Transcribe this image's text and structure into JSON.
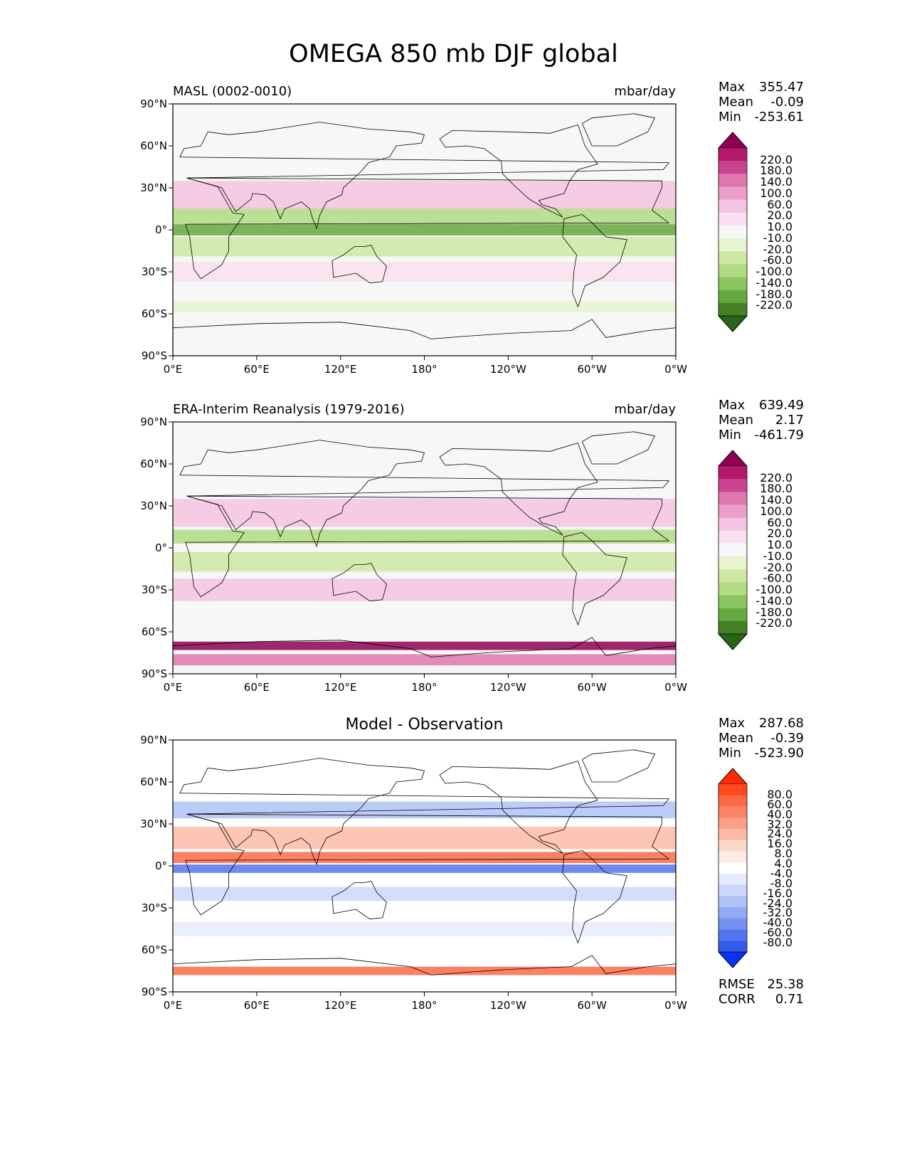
{
  "title": "OMEGA 850 mb DJF global",
  "axes": {
    "lat_ticks": [
      "90°N",
      "60°N",
      "30°N",
      "0°",
      "30°S",
      "60°S",
      "90°S"
    ],
    "lon_ticks": [
      "0°E",
      "60°E",
      "120°E",
      "180°",
      "120°W",
      "60°W",
      "0°W"
    ]
  },
  "panels": [
    {
      "id": "model",
      "title_left": "MASL (0002-0010)",
      "title_center": "",
      "title_right": "mbar/day",
      "stats": [
        {
          "label": "Max",
          "value": "355.47"
        },
        {
          "label": "Mean",
          "value": "-0.09"
        },
        {
          "label": "Min",
          "value": "-253.61"
        }
      ],
      "colorbar": {
        "levels": [
          "220.0",
          "180.0",
          "140.0",
          "100.0",
          "60.0",
          "20.0",
          "10.0",
          "-10.0",
          "-20.0",
          "-60.0",
          "-100.0",
          "-140.0",
          "-180.0",
          "-220.0"
        ],
        "colors": [
          "#8e0152",
          "#b3186c",
          "#c8448f",
          "#de77ae",
          "#ec9dc8",
          "#f4c4e1",
          "#f9e0ef",
          "#f7f7f7",
          "#e6f5d0",
          "#cde8a5",
          "#b2db84",
          "#8cc660",
          "#65a83e",
          "#437f24",
          "#27641a"
        ]
      }
    },
    {
      "id": "obs",
      "title_left": "ERA-Interim Reanalysis (1979-2016)",
      "title_center": "",
      "title_right": "mbar/day",
      "stats": [
        {
          "label": "Max",
          "value": "639.49"
        },
        {
          "label": "Mean",
          "value": "2.17"
        },
        {
          "label": "Min",
          "value": "-461.79"
        }
      ],
      "colorbar": {
        "levels": [
          "220.0",
          "180.0",
          "140.0",
          "100.0",
          "60.0",
          "20.0",
          "10.0",
          "-10.0",
          "-20.0",
          "-60.0",
          "-100.0",
          "-140.0",
          "-180.0",
          "-220.0"
        ],
        "colors": [
          "#8e0152",
          "#b3186c",
          "#c8448f",
          "#de77ae",
          "#ec9dc8",
          "#f4c4e1",
          "#f9e0ef",
          "#f7f7f7",
          "#e6f5d0",
          "#cde8a5",
          "#b2db84",
          "#8cc660",
          "#65a83e",
          "#437f24",
          "#27641a"
        ]
      }
    },
    {
      "id": "diff",
      "title_left": "",
      "title_center": "Model - Observation",
      "title_right": "",
      "stats": [
        {
          "label": "Max",
          "value": "287.68"
        },
        {
          "label": "Mean",
          "value": "-0.39"
        },
        {
          "label": "Min",
          "value": "-523.90"
        }
      ],
      "extra_stats": [
        {
          "label": "RMSE",
          "value": "25.38"
        },
        {
          "label": "CORR",
          "value": "0.71"
        }
      ],
      "colorbar": {
        "levels": [
          "80.0",
          "60.0",
          "40.0",
          "32.0",
          "24.0",
          "16.0",
          "8.0",
          "4.0",
          "-4.0",
          "-8.0",
          "-16.0",
          "-24.0",
          "-32.0",
          "-40.0",
          "-60.0",
          "-80.0"
        ],
        "colors": [
          "#ff2a00",
          "#ff4a20",
          "#fb6a47",
          "#fa8466",
          "#fc9f86",
          "#fdbba6",
          "#fdd7c8",
          "#feece4",
          "#ffffff",
          "#e6ebfd",
          "#cdd7fb",
          "#b1c2f8",
          "#94a9f4",
          "#7590f0",
          "#5575ec",
          "#345aea",
          "#0a32f5"
        ]
      }
    }
  ],
  "map_fields": {
    "model": {
      "ocean": "#f7f7f7",
      "bands": [
        {
          "lat": 10,
          "h": 12,
          "color": "#b2db84"
        },
        {
          "lat": 0,
          "h": 8,
          "color": "#65a83e"
        },
        {
          "lat": -12,
          "h": 14,
          "color": "#cde8a5"
        },
        {
          "lat": 25,
          "h": 20,
          "color": "#f4c4e1"
        },
        {
          "lat": -30,
          "h": 14,
          "color": "#f9e0ef"
        },
        {
          "lat": -55,
          "h": 8,
          "color": "#e6f5d0"
        }
      ]
    },
    "obs": {
      "ocean": "#f7f7f7",
      "bands": [
        {
          "lat": 8,
          "h": 10,
          "color": "#b2db84"
        },
        {
          "lat": -10,
          "h": 14,
          "color": "#cde8a5"
        },
        {
          "lat": 25,
          "h": 20,
          "color": "#f4c4e1"
        },
        {
          "lat": -30,
          "h": 16,
          "color": "#f4c4e1"
        },
        {
          "lat": -70,
          "h": 6,
          "color": "#8e0152"
        },
        {
          "lat": -80,
          "h": 8,
          "color": "#de77ae"
        }
      ]
    },
    "diff": {
      "ocean": "#ffffff",
      "bands": [
        {
          "lat": 6,
          "h": 8,
          "color": "#fb6a47"
        },
        {
          "lat": -2,
          "h": 6,
          "color": "#5575ec"
        },
        {
          "lat": 20,
          "h": 16,
          "color": "#fdbba6"
        },
        {
          "lat": 40,
          "h": 12,
          "color": "#b1c2f8"
        },
        {
          "lat": -20,
          "h": 10,
          "color": "#cdd7fb"
        },
        {
          "lat": -45,
          "h": 10,
          "color": "#e6ebfd"
        },
        {
          "lat": -75,
          "h": 6,
          "color": "#fb6a47"
        }
      ]
    }
  }
}
